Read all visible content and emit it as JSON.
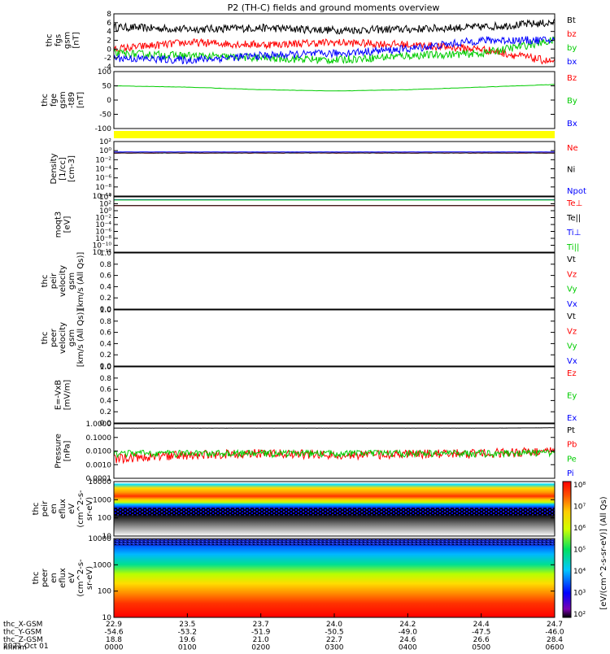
{
  "title": "P2 (TH-C) fields and ground moments overview",
  "panels": [
    {
      "ylabel": [
        "thc",
        "fgs",
        "gsm",
        "[nT]"
      ],
      "yticks": [
        "8",
        "6",
        "4",
        "2",
        "0",
        "-2",
        "-4"
      ],
      "legend": [
        {
          "t": "Bt",
          "c": "#000000"
        },
        {
          "t": "bz",
          "c": "#ff0000"
        },
        {
          "t": "by",
          "c": "#00cc00"
        },
        {
          "t": "bx",
          "c": "#0000ff"
        }
      ]
    },
    {
      "ylabel": [
        "thc",
        "fge",
        "gsm",
        "-t89",
        "[nT]"
      ],
      "yticks": [
        "100",
        "50",
        "0",
        "-50",
        "-100"
      ],
      "legend": [
        {
          "t": "Bz",
          "c": "#ff0000"
        },
        {
          "t": "By",
          "c": "#00cc00"
        },
        {
          "t": "Bx",
          "c": "#0000ff"
        }
      ]
    },
    {
      "ylabel": [
        "Density",
        "[1/cc]",
        "[cm-3]"
      ],
      "yticks": [
        "10²",
        "10⁰",
        "10⁻²",
        "10⁻⁴",
        "10⁻⁶",
        "10⁻⁸",
        "10⁻¹⁰"
      ],
      "legend": [
        {
          "t": "Ne",
          "c": "#ff0000"
        },
        {
          "t": "Ni",
          "c": "#000000"
        },
        {
          "t": "Npot",
          "c": "#0000ff"
        }
      ]
    },
    {
      "ylabel": [
        "moqt3",
        "[eV]"
      ],
      "yticks": [
        "10⁴",
        "10²",
        "10⁰",
        "10⁻²",
        "10⁻⁴",
        "10⁻⁶",
        "10⁻⁸",
        "10⁻¹⁰",
        "10⁻¹²"
      ],
      "legend": [
        {
          "t": "Te⊥",
          "c": "#ff0000"
        },
        {
          "t": "Te||",
          "c": "#000000"
        },
        {
          "t": "Ti⊥",
          "c": "#0000ff"
        },
        {
          "t": "Ti||",
          "c": "#00cc00"
        }
      ]
    },
    {
      "ylabel": [
        "thc",
        "peir",
        "velocity",
        "gsm",
        "[km/s (All Qs)]"
      ],
      "yticks": [
        "1.0",
        "0.8",
        "0.6",
        "0.4",
        "0.2",
        "0.0"
      ],
      "legend": [
        {
          "t": "Vt",
          "c": "#000000"
        },
        {
          "t": "Vz",
          "c": "#ff0000"
        },
        {
          "t": "Vy",
          "c": "#00cc00"
        },
        {
          "t": "Vx",
          "c": "#0000ff"
        }
      ]
    },
    {
      "ylabel": [
        "thc",
        "peer",
        "velocity",
        "gsm",
        "[km/s (All Qs)]"
      ],
      "yticks": [
        "1.0",
        "0.8",
        "0.6",
        "0.4",
        "0.2",
        "0.0"
      ],
      "legend": [
        {
          "t": "Vt",
          "c": "#000000"
        },
        {
          "t": "Vz",
          "c": "#ff0000"
        },
        {
          "t": "Vy",
          "c": "#00cc00"
        },
        {
          "t": "Vx",
          "c": "#0000ff"
        }
      ]
    },
    {
      "ylabel": [
        "E=-VxB",
        "[mV/m]"
      ],
      "yticks": [
        "1.0",
        "0.8",
        "0.6",
        "0.4",
        "0.2",
        "0.0"
      ],
      "legend": [
        {
          "t": "Ez",
          "c": "#ff0000"
        },
        {
          "t": "Ey",
          "c": "#00cc00"
        },
        {
          "t": "Ex",
          "c": "#0000ff"
        }
      ]
    },
    {
      "ylabel": [
        "Pressure",
        "[nPa]"
      ],
      "yticks": [
        "1.0000",
        "0.1000",
        "0.0100",
        "0.0010",
        "0.0001"
      ],
      "legend": [
        {
          "t": "Pt",
          "c": "#000000"
        },
        {
          "t": "Pb",
          "c": "#ff0000"
        },
        {
          "t": "Pe",
          "c": "#00cc00"
        },
        {
          "t": "Pi",
          "c": "#0000ff"
        }
      ]
    },
    {
      "ylabel": [
        "thc",
        "peir",
        "en",
        "eflux",
        "eV",
        "(cm^2-s-",
        "sr-eV)"
      ],
      "yticks": [
        "10000",
        "1000",
        "100",
        "10"
      ],
      "legend": []
    },
    {
      "ylabel": [
        "thc",
        "peer",
        "en",
        "eflux",
        "eV",
        "(cm^2-s-",
        "sr-eV)"
      ],
      "yticks": [
        "10000",
        "1000",
        "100",
        "10"
      ],
      "legend": []
    }
  ],
  "colorbar": {
    "label": "[eV/(cm^2-s-sr-eV)] (All Qs)",
    "ticks": [
      "10⁸",
      "10⁷",
      "10⁶",
      "10⁵",
      "10⁴",
      "10³",
      "10²"
    ]
  },
  "xaxis": {
    "rows": [
      {
        "label": "thc_X-GSM",
        "values": [
          "22.9",
          "23.5",
          "23.7",
          "24.0",
          "24.2",
          "24.4",
          "24.7"
        ]
      },
      {
        "label": "thc_Y-GSM",
        "values": [
          "-54.6",
          "-53.2",
          "-51.9",
          "-50.5",
          "-49.0",
          "-47.5",
          "-46.0"
        ]
      },
      {
        "label": "thc_Z-GSM",
        "values": [
          "18.8",
          "19.6",
          "21.0",
          "22.7",
          "24.6",
          "26.6",
          "28.4"
        ]
      },
      {
        "label": "hhmm",
        "values": [
          "0000",
          "0100",
          "0200",
          "0300",
          "0400",
          "0500",
          "0600"
        ]
      }
    ],
    "date": "2021 Oct 01"
  },
  "chart_data": [
    {
      "type": "line",
      "title": "P2 (TH-C) fields and ground moments overview",
      "ylabel": "thc fgs gsm [nT]",
      "ylim": [
        -4,
        8
      ],
      "x": [
        "0000",
        "0100",
        "0200",
        "0300",
        "0400",
        "0500",
        "0600"
      ],
      "series": [
        {
          "name": "Bt",
          "values": [
            5,
            4.5,
            4.8,
            4.3,
            4.5,
            5,
            6
          ]
        },
        {
          "name": "bz",
          "values": [
            0,
            1.5,
            1,
            1.5,
            1,
            0,
            -3
          ]
        },
        {
          "name": "by",
          "values": [
            -1,
            -1.5,
            -2,
            -2.5,
            -1.5,
            -1,
            2
          ]
        },
        {
          "name": "bx",
          "values": [
            -2,
            -2.5,
            -1.5,
            -1,
            0,
            2,
            2
          ]
        }
      ]
    },
    {
      "type": "line",
      "ylabel": "thc fge gsm -t89 [nT]",
      "ylim": [
        -120,
        100
      ],
      "x": [
        "0000",
        "0100",
        "0200",
        "0300",
        "0400",
        "0500",
        "0600"
      ],
      "series": [
        {
          "name": "By",
          "values": [
            45,
            40,
            30,
            25,
            30,
            40,
            50
          ]
        }
      ]
    },
    {
      "type": "line",
      "ylabel": "Density [1/cc]",
      "scale": "log",
      "ylim": [
        1e-10,
        100
      ],
      "x": [
        "0000",
        "0100",
        "0200",
        "0300",
        "0400",
        "0500",
        "0600"
      ],
      "series": [
        {
          "name": "Ne",
          "values": [
            0.3,
            0.3,
            0.3,
            0.3,
            0.3,
            0.3,
            0.3
          ]
        },
        {
          "name": "Ni",
          "values": [
            0.3,
            0.3,
            0.3,
            0.3,
            0.3,
            0.3,
            0.3
          ]
        },
        {
          "name": "Npot",
          "values": [
            0.5,
            0.5,
            0.5,
            0.5,
            0.5,
            0.5,
            0.5
          ]
        }
      ]
    },
    {
      "type": "line",
      "ylabel": "moqt3 [eV]",
      "scale": "log",
      "ylim": [
        1e-12,
        10000
      ],
      "x": [
        "0000",
        "0100",
        "0200",
        "0300",
        "0400",
        "0500",
        "0600"
      ],
      "series": [
        {
          "name": "Te⊥",
          "values": [
            30,
            30,
            30,
            30,
            30,
            30,
            30
          ]
        },
        {
          "name": "Te||",
          "values": [
            30,
            30,
            30,
            30,
            30,
            30,
            30
          ]
        },
        {
          "name": "Ti⊥",
          "values": [
            1500,
            1500,
            1500,
            1500,
            1500,
            1500,
            1500
          ]
        },
        {
          "name": "Ti||",
          "values": [
            1200,
            1200,
            1200,
            1200,
            1200,
            1200,
            1200
          ]
        }
      ]
    },
    {
      "type": "line",
      "ylabel": "thc peir velocity gsm",
      "ylim": [
        0,
        1
      ],
      "series": []
    },
    {
      "type": "line",
      "ylabel": "thc peer velocity gsm",
      "ylim": [
        0,
        1
      ],
      "series": []
    },
    {
      "type": "line",
      "ylabel": "E=-VxB [mV/m]",
      "ylim": [
        0,
        1
      ],
      "series": []
    },
    {
      "type": "line",
      "ylabel": "Pressure [nPa]",
      "scale": "log",
      "ylim": [
        0.0001,
        1.5
      ],
      "x": [
        "0000",
        "0100",
        "0200",
        "0300",
        "0400",
        "0500",
        "0600"
      ],
      "series": [
        {
          "name": "Pt",
          "values": [
            0.7,
            0.7,
            0.7,
            0.7,
            0.7,
            0.7,
            0.75
          ]
        },
        {
          "name": "Pb",
          "values": [
            0.003,
            0.006,
            0.008,
            0.006,
            0.007,
            0.008,
            0.012
          ]
        },
        {
          "name": "Pe",
          "values": [
            0.009,
            0.009,
            0.009,
            0.009,
            0.009,
            0.009,
            0.01
          ]
        }
      ]
    },
    {
      "type": "heatmap",
      "ylabel": "thc peir en eflux",
      "scale": "log",
      "ylim": [
        5,
        20000
      ],
      "zlim": [
        100,
        100000000
      ]
    },
    {
      "type": "heatmap",
      "ylabel": "thc peer en eflux",
      "scale": "log",
      "ylim": [
        5,
        20000
      ],
      "zlim": [
        100,
        100000000
      ]
    }
  ]
}
